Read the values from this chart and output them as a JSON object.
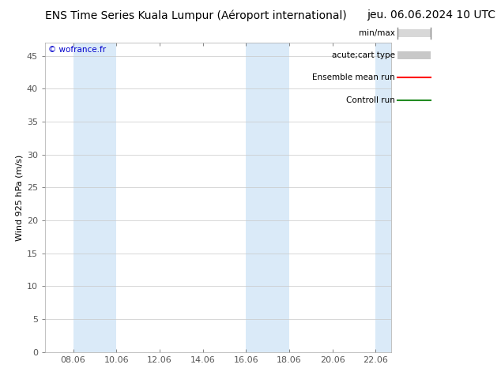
{
  "title_left": "ENS Time Series Kuala Lumpur (Aéroport international)",
  "title_right": "jeu. 06.06.2024 10 UTC",
  "ylabel": "Wind 925 hPa (m/s)",
  "ylim": [
    0,
    47
  ],
  "yticks": [
    0,
    5,
    10,
    15,
    20,
    25,
    30,
    35,
    40,
    45
  ],
  "xtick_labels": [
    "08.06",
    "10.06",
    "12.06",
    "14.06",
    "16.06",
    "18.06",
    "20.06",
    "22.06"
  ],
  "xtick_positions": [
    1,
    3,
    5,
    7,
    9,
    11,
    13,
    15
  ],
  "xlim": [
    -0.3,
    15.7
  ],
  "copyright_text": "© wofrance.fr",
  "bg_color": "#ffffff",
  "plot_bg_color": "#ffffff",
  "shade_color": "#daeaf8",
  "shade_bands": [
    {
      "xmin": 1.0,
      "xmax": 3.0
    },
    {
      "xmin": 9.0,
      "xmax": 11.0
    },
    {
      "xmin": 15.0,
      "xmax": 16.5
    }
  ],
  "legend_entries": [
    {
      "label": "min/max",
      "color": "#c8c8c8",
      "type": "band"
    },
    {
      "label": "acute;cart type",
      "color": "#b0b0b0",
      "type": "band2"
    },
    {
      "label": "Ensemble mean run",
      "color": "#ff0000",
      "type": "line"
    },
    {
      "label": "Controll run",
      "color": "#228B22",
      "type": "line"
    }
  ],
  "grid_color": "#c8c8c8",
  "tick_color": "#555555",
  "border_color": "#aaaaaa",
  "font_size_title": 10,
  "font_size_axis": 8,
  "font_size_legend": 7.5,
  "font_size_copyright": 7.5
}
